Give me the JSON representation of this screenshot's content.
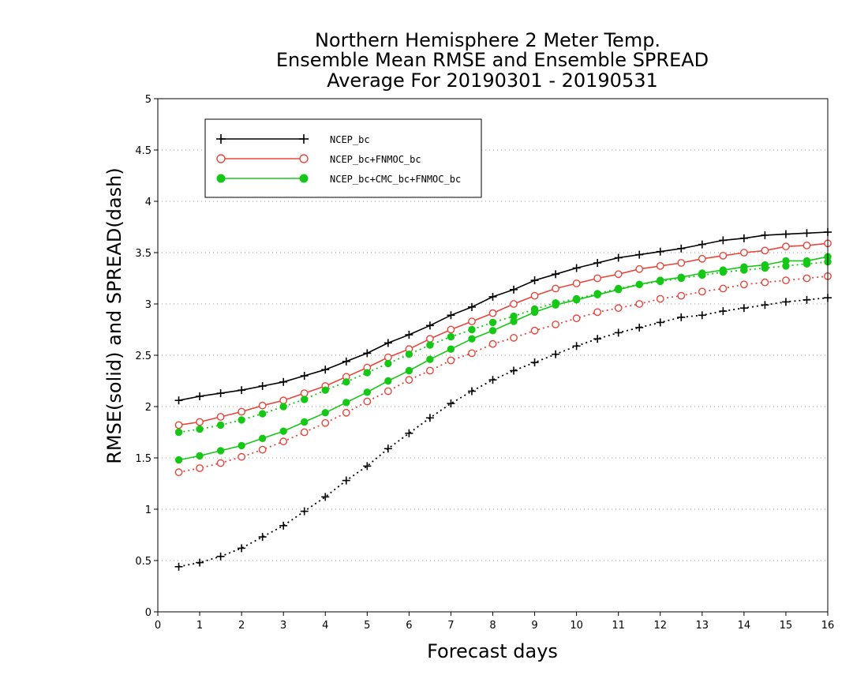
{
  "chart_data": {
    "type": "line",
    "title": "Northern Hemisphere 2 Meter Temp.",
    "title_lines": [
      "Northern Hemisphere 2 Meter Temp.",
      "Ensemble Mean RMSE and Ensemble SPREAD",
      "Average For 20190301 - 20190531"
    ],
    "xlabel": "Forecast days",
    "ylabel": "RMSE(solid) and SPREAD(dash)",
    "xlim": [
      0,
      16
    ],
    "ylim": [
      0,
      5
    ],
    "x_ticks": [
      "0",
      "1",
      "2",
      "3",
      "4",
      "5",
      "6",
      "7",
      "8",
      "9",
      "10",
      "11",
      "12",
      "13",
      "14",
      "15",
      "16"
    ],
    "y_ticks": [
      "0",
      "0.5",
      "1",
      "1.5",
      "2",
      "2.5",
      "3",
      "3.5",
      "4",
      "4.5",
      "5"
    ],
    "grid": "dotted horizontal",
    "legend_placement": "top-left",
    "x": [
      0.5,
      1,
      1.5,
      2,
      2.5,
      3,
      3.5,
      4,
      4.5,
      5,
      5.5,
      6,
      6.5,
      7,
      7.5,
      8,
      8.5,
      9,
      9.5,
      10,
      10.5,
      11,
      11.5,
      12,
      12.5,
      13,
      13.5,
      14,
      14.5,
      15,
      15.5,
      16
    ],
    "series": [
      {
        "name": "NCEP_bc",
        "metric": "RMSE",
        "color": "#000000",
        "marker": "plus",
        "style": "solid",
        "values": [
          2.06,
          2.1,
          2.13,
          2.16,
          2.2,
          2.24,
          2.3,
          2.36,
          2.44,
          2.52,
          2.62,
          2.7,
          2.79,
          2.89,
          2.97,
          3.07,
          3.14,
          3.23,
          3.29,
          3.35,
          3.4,
          3.45,
          3.48,
          3.51,
          3.54,
          3.58,
          3.62,
          3.64,
          3.67,
          3.68,
          3.69,
          3.7
        ]
      },
      {
        "name": "NCEP_bc+FNMOC_bc",
        "metric": "RMSE",
        "color": "#e8463c",
        "marker": "open-circle",
        "style": "solid",
        "values": [
          1.82,
          1.85,
          1.9,
          1.95,
          2.01,
          2.06,
          2.13,
          2.2,
          2.29,
          2.38,
          2.48,
          2.56,
          2.66,
          2.75,
          2.83,
          2.91,
          3.0,
          3.08,
          3.15,
          3.2,
          3.25,
          3.29,
          3.34,
          3.37,
          3.4,
          3.44,
          3.47,
          3.5,
          3.52,
          3.56,
          3.57,
          3.59
        ]
      },
      {
        "name": "NCEP_bc+CMC_bc+FNMOC_bc",
        "metric": "RMSE",
        "color": "#16c816",
        "marker": "filled-circle",
        "style": "solid",
        "values": [
          1.48,
          1.52,
          1.57,
          1.62,
          1.69,
          1.76,
          1.85,
          1.94,
          2.04,
          2.14,
          2.25,
          2.35,
          2.46,
          2.56,
          2.66,
          2.74,
          2.83,
          2.92,
          2.99,
          3.04,
          3.09,
          3.14,
          3.19,
          3.23,
          3.26,
          3.3,
          3.33,
          3.36,
          3.38,
          3.42,
          3.42,
          3.46
        ]
      },
      {
        "name": "NCEP_bc",
        "metric": "SPREAD",
        "color": "#000000",
        "marker": "plus",
        "style": "dotted",
        "values": [
          0.44,
          0.48,
          0.54,
          0.62,
          0.73,
          0.84,
          0.98,
          1.12,
          1.28,
          1.42,
          1.59,
          1.74,
          1.89,
          2.03,
          2.15,
          2.26,
          2.35,
          2.43,
          2.51,
          2.59,
          2.66,
          2.72,
          2.77,
          2.82,
          2.87,
          2.89,
          2.93,
          2.96,
          2.99,
          3.02,
          3.04,
          3.06
        ]
      },
      {
        "name": "NCEP_bc+FNMOC_bc",
        "metric": "SPREAD",
        "color": "#e8463c",
        "marker": "open-circle",
        "style": "dotted",
        "values": [
          1.36,
          1.4,
          1.45,
          1.51,
          1.58,
          1.66,
          1.75,
          1.84,
          1.94,
          2.05,
          2.15,
          2.26,
          2.35,
          2.45,
          2.52,
          2.61,
          2.67,
          2.74,
          2.8,
          2.86,
          2.92,
          2.96,
          3.0,
          3.05,
          3.08,
          3.12,
          3.15,
          3.19,
          3.21,
          3.23,
          3.25,
          3.27
        ]
      },
      {
        "name": "NCEP_bc+CMC_bc+FNMOC_bc",
        "metric": "SPREAD",
        "color": "#16c816",
        "marker": "filled-circle",
        "style": "dotted",
        "values": [
          1.75,
          1.78,
          1.82,
          1.87,
          1.93,
          2.0,
          2.07,
          2.16,
          2.24,
          2.33,
          2.42,
          2.51,
          2.6,
          2.68,
          2.75,
          2.82,
          2.88,
          2.95,
          3.01,
          3.05,
          3.1,
          3.15,
          3.19,
          3.22,
          3.25,
          3.28,
          3.31,
          3.33,
          3.35,
          3.37,
          3.39,
          3.41
        ]
      }
    ],
    "legend": [
      {
        "label": "NCEP_bc",
        "color": "#000000",
        "marker": "plus"
      },
      {
        "label": "NCEP_bc+FNMOC_bc",
        "color": "#e8463c",
        "marker": "open-circle"
      },
      {
        "label": "NCEP_bc+CMC_bc+FNMOC_bc",
        "color": "#16c816",
        "marker": "filled-circle"
      }
    ]
  }
}
